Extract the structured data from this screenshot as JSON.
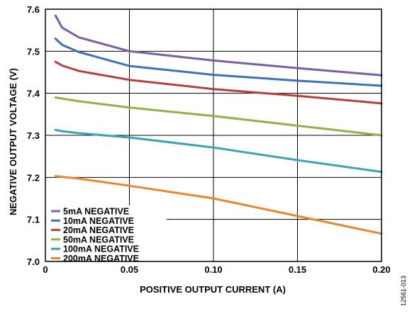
{
  "chart_data": {
    "type": "line",
    "xlabel": "POSITIVE OUTPUT CURRENT (A)",
    "ylabel": "NEGATIVE OUTPUT VOLTAGE (V)",
    "xlim": [
      0,
      0.2
    ],
    "ylim": [
      7.0,
      7.6
    ],
    "x_ticks": [
      "0",
      "0.05",
      "0.10",
      "0.15",
      "0.20"
    ],
    "y_ticks": [
      "7.0",
      "7.1",
      "7.2",
      "7.3",
      "7.4",
      "7.5",
      "7.6"
    ],
    "grid": true,
    "legend_position": "bottom-left",
    "figure_id": "12561-013",
    "series": [
      {
        "name": "5mA NEGATIVE",
        "color": "#7b5ea7",
        "points": [
          [
            0.006,
            7.585
          ],
          [
            0.01,
            7.556
          ],
          [
            0.02,
            7.533
          ],
          [
            0.05,
            7.5
          ],
          [
            0.1,
            7.478
          ],
          [
            0.15,
            7.46
          ],
          [
            0.2,
            7.443
          ]
        ]
      },
      {
        "name": "10mA NEGATIVE",
        "color": "#3f72b5",
        "points": [
          [
            0.006,
            7.53
          ],
          [
            0.01,
            7.515
          ],
          [
            0.02,
            7.498
          ],
          [
            0.05,
            7.465
          ],
          [
            0.1,
            7.444
          ],
          [
            0.15,
            7.43
          ],
          [
            0.2,
            7.418
          ]
        ]
      },
      {
        "name": "20mA NEGATIVE",
        "color": "#b8403c",
        "points": [
          [
            0.006,
            7.475
          ],
          [
            0.01,
            7.466
          ],
          [
            0.02,
            7.453
          ],
          [
            0.05,
            7.432
          ],
          [
            0.1,
            7.41
          ],
          [
            0.15,
            7.394
          ],
          [
            0.2,
            7.376
          ]
        ]
      },
      {
        "name": "50mA NEGATIVE",
        "color": "#8db34a",
        "points": [
          [
            0.006,
            7.39
          ],
          [
            0.02,
            7.381
          ],
          [
            0.05,
            7.366
          ],
          [
            0.1,
            7.346
          ],
          [
            0.15,
            7.323
          ],
          [
            0.2,
            7.3
          ]
        ]
      },
      {
        "name": "100mA NEGATIVE",
        "color": "#3aa3b5",
        "points": [
          [
            0.006,
            7.313
          ],
          [
            0.01,
            7.31
          ],
          [
            0.02,
            7.305
          ],
          [
            0.05,
            7.295
          ],
          [
            0.1,
            7.271
          ],
          [
            0.15,
            7.241
          ],
          [
            0.2,
            7.213
          ]
        ]
      },
      {
        "name": "200mA NEGATIVE",
        "color": "#e8872b",
        "points": [
          [
            0.006,
            7.203
          ],
          [
            0.02,
            7.197
          ],
          [
            0.05,
            7.18
          ],
          [
            0.1,
            7.15
          ],
          [
            0.15,
            7.108
          ],
          [
            0.2,
            7.066
          ]
        ]
      }
    ]
  }
}
